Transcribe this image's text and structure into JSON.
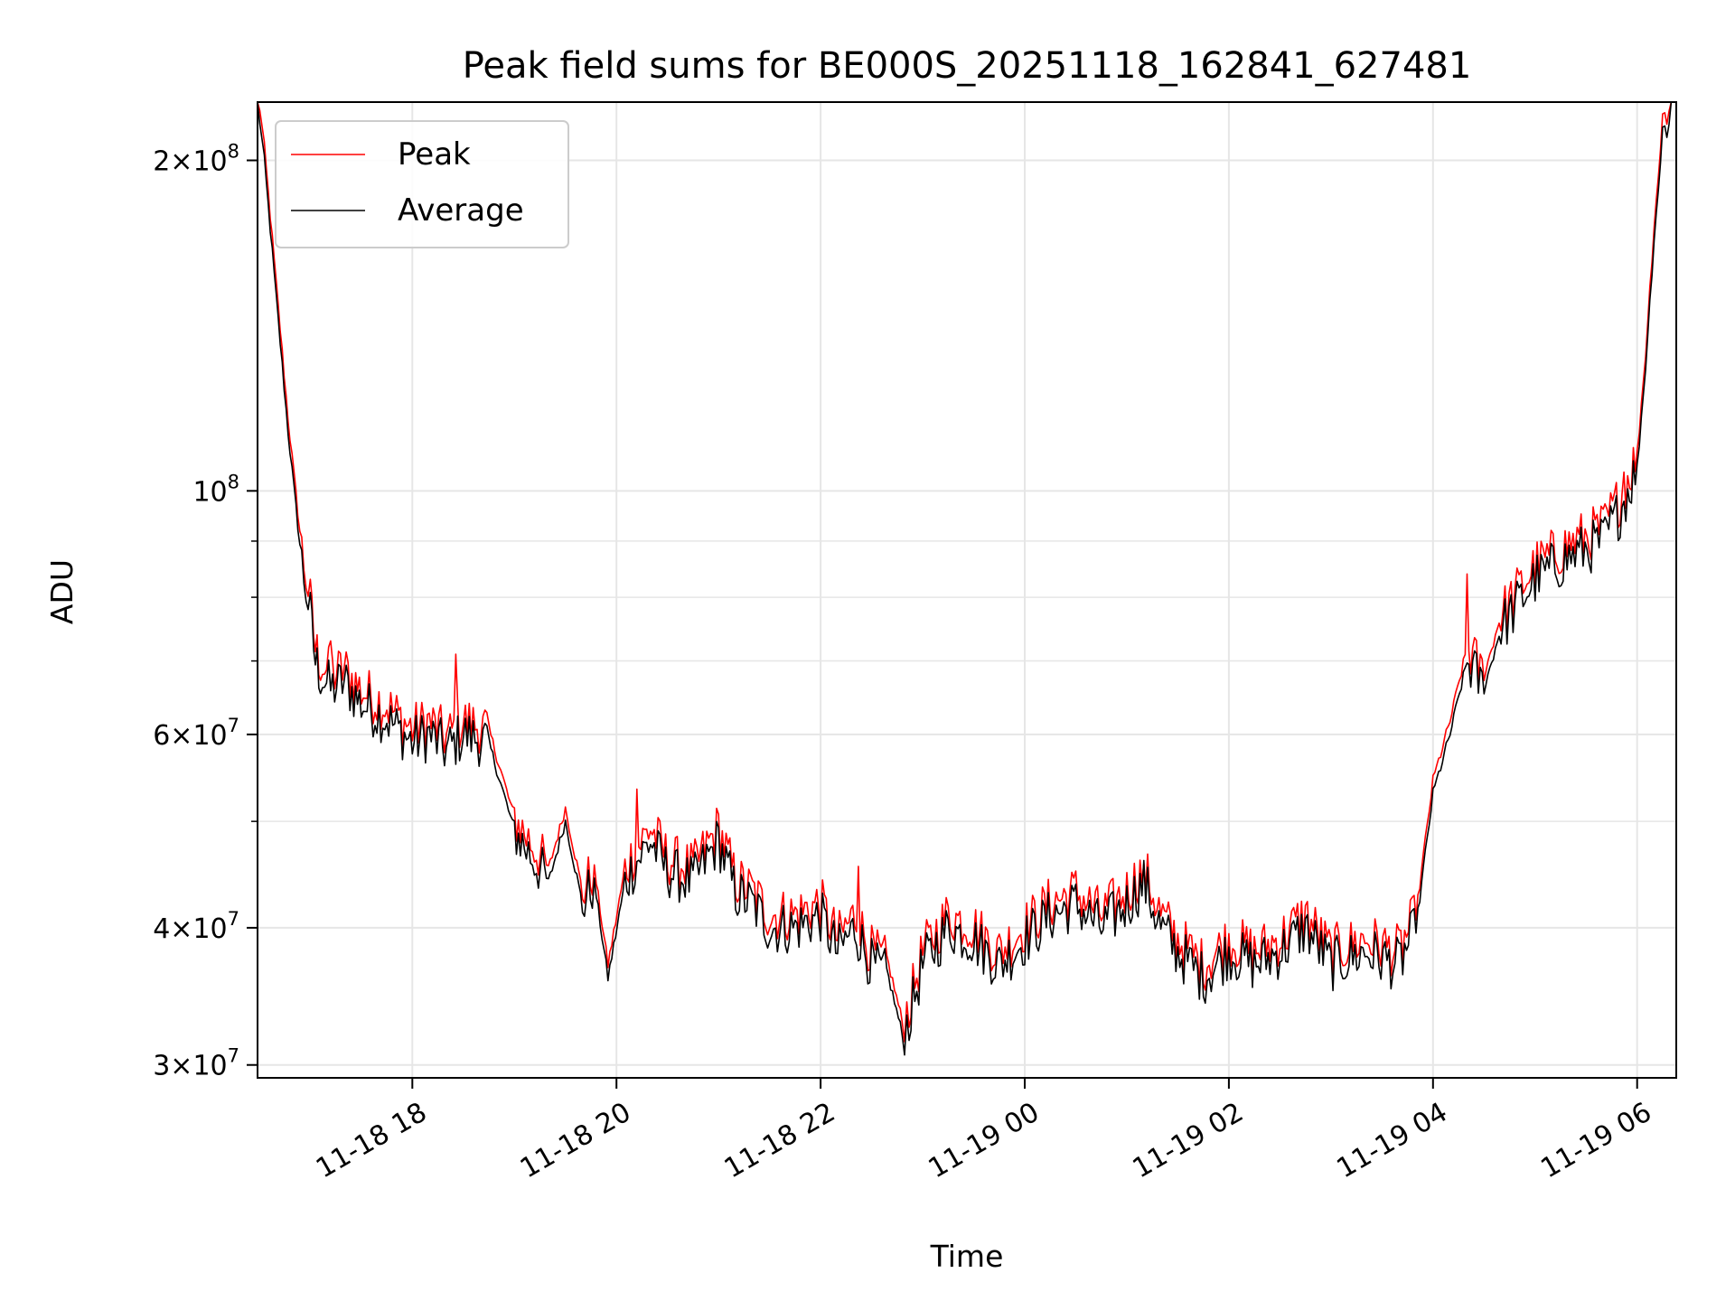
{
  "chart_data": {
    "type": "line",
    "title": "Peak field sums for BE000S_20251118_162841_627481",
    "xlabel": "Time",
    "ylabel": "ADU",
    "yscale": "log",
    "ylim": [
      29200000,
      226000000
    ],
    "xlim": [
      "2025-11-18 16:29",
      "2025-11-19 06:23"
    ],
    "grid": true,
    "legend_position": "top-left",
    "x_ticks": [
      {
        "t": "2025-11-18 18:00",
        "label": "11-18 18"
      },
      {
        "t": "2025-11-18 20:00",
        "label": "11-18 20"
      },
      {
        "t": "2025-11-18 22:00",
        "label": "11-18 22"
      },
      {
        "t": "2025-11-19 00:00",
        "label": "11-19 00"
      },
      {
        "t": "2025-11-19 02:00",
        "label": "11-19 02"
      },
      {
        "t": "2025-11-19 04:00",
        "label": "11-19 04"
      },
      {
        "t": "2025-11-19 06:00",
        "label": "11-19 06"
      }
    ],
    "y_ticks": [
      {
        "value": 30000000,
        "coef": "3",
        "exp": "7"
      },
      {
        "value": 40000000,
        "coef": "4",
        "exp": "7"
      },
      {
        "value": 60000000,
        "coef": "6",
        "exp": "7"
      },
      {
        "value": 100000000,
        "coef": "",
        "exp": "8"
      },
      {
        "value": 200000000,
        "coef": "2",
        "exp": "8"
      }
    ],
    "y_minor_ticks": [
      50000000,
      70000000,
      80000000,
      90000000
    ],
    "series": [
      {
        "name": "Peak",
        "color": "#ff0000",
        "peak_offset": 0.012,
        "spikes": [
          [
            "2025-11-18 17:12",
            73000000
          ],
          [
            "2025-11-18 18:26",
            71000000
          ],
          [
            "2025-11-18 20:12",
            53500000
          ],
          [
            "2025-11-18 22:22",
            45500000
          ],
          [
            "2025-11-19 01:10",
            45800000
          ],
          [
            "2025-11-19 04:20",
            84000000
          ],
          [
            "2025-11-19 05:52",
            104000000
          ]
        ]
      },
      {
        "name": "Average",
        "color": "#000000",
        "spikes": []
      }
    ],
    "x": [
      "2025-11-18 16:29",
      "2025-11-18 16:33",
      "2025-11-18 16:40",
      "2025-11-18 16:47",
      "2025-11-18 16:55",
      "2025-11-18 17:00",
      "2025-11-18 17:03",
      "2025-11-18 17:06",
      "2025-11-18 17:12",
      "2025-11-18 17:20",
      "2025-11-18 17:30",
      "2025-11-18 17:45",
      "2025-11-18 18:00",
      "2025-11-18 18:10",
      "2025-11-18 18:20",
      "2025-11-18 18:30",
      "2025-11-18 18:45",
      "2025-11-18 19:00",
      "2025-11-18 19:20",
      "2025-11-18 19:30",
      "2025-11-18 19:40",
      "2025-11-18 19:47",
      "2025-11-18 19:55",
      "2025-11-18 20:05",
      "2025-11-18 20:12",
      "2025-11-18 20:20",
      "2025-11-18 20:30",
      "2025-11-18 20:45",
      "2025-11-18 21:00",
      "2025-11-18 21:10",
      "2025-11-18 21:20",
      "2025-11-18 21:30",
      "2025-11-18 21:45",
      "2025-11-18 22:00",
      "2025-11-18 22:10",
      "2025-11-18 22:20",
      "2025-11-18 22:30",
      "2025-11-18 22:40",
      "2025-11-18 22:48",
      "2025-11-18 22:52",
      "2025-11-18 23:00",
      "2025-11-18 23:15",
      "2025-11-18 23:30",
      "2025-11-18 23:45",
      "2025-11-19 00:00",
      "2025-11-19 00:15",
      "2025-11-19 00:30",
      "2025-11-19 00:45",
      "2025-11-19 01:00",
      "2025-11-19 01:10",
      "2025-11-19 01:20",
      "2025-11-19 01:30",
      "2025-11-19 01:45",
      "2025-11-19 02:00",
      "2025-11-19 02:15",
      "2025-11-19 02:30",
      "2025-11-19 02:45",
      "2025-11-19 03:00",
      "2025-11-19 03:20",
      "2025-11-19 03:40",
      "2025-11-19 03:50",
      "2025-11-19 04:00",
      "2025-11-19 04:10",
      "2025-11-19 04:20",
      "2025-11-19 04:30",
      "2025-11-19 04:40",
      "2025-11-19 05:00",
      "2025-11-19 05:20",
      "2025-11-19 05:40",
      "2025-11-19 05:50",
      "2025-11-19 06:00",
      "2025-11-19 06:05",
      "2025-11-19 06:10",
      "2025-11-19 06:15",
      "2025-11-19 06:20"
    ],
    "y": [
      226000000,
      200000000,
      150000000,
      113000000,
      86000000,
      77000000,
      70000000,
      68000000,
      66000000,
      67000000,
      64000000,
      62000000,
      59000000,
      60000000,
      58000000,
      60000000,
      59000000,
      49000000,
      44000000,
      50000000,
      42000000,
      44000000,
      36000000,
      44000000,
      46000000,
      48000000,
      45000000,
      44000000,
      48000000,
      43000000,
      42000000,
      40000000,
      40000000,
      41000000,
      38000000,
      40000000,
      37000000,
      36000000,
      32000000,
      33000000,
      37000000,
      40000000,
      39000000,
      37000000,
      39000000,
      41000000,
      42000000,
      40000000,
      42000000,
      44000000,
      40000000,
      38000000,
      36000000,
      38000000,
      37000000,
      38000000,
      40000000,
      37000000,
      38000000,
      37000000,
      40000000,
      53000000,
      60000000,
      70000000,
      66000000,
      75000000,
      83000000,
      87000000,
      90000000,
      96000000,
      105000000,
      130000000,
      170000000,
      210000000,
      226000000
    ]
  }
}
